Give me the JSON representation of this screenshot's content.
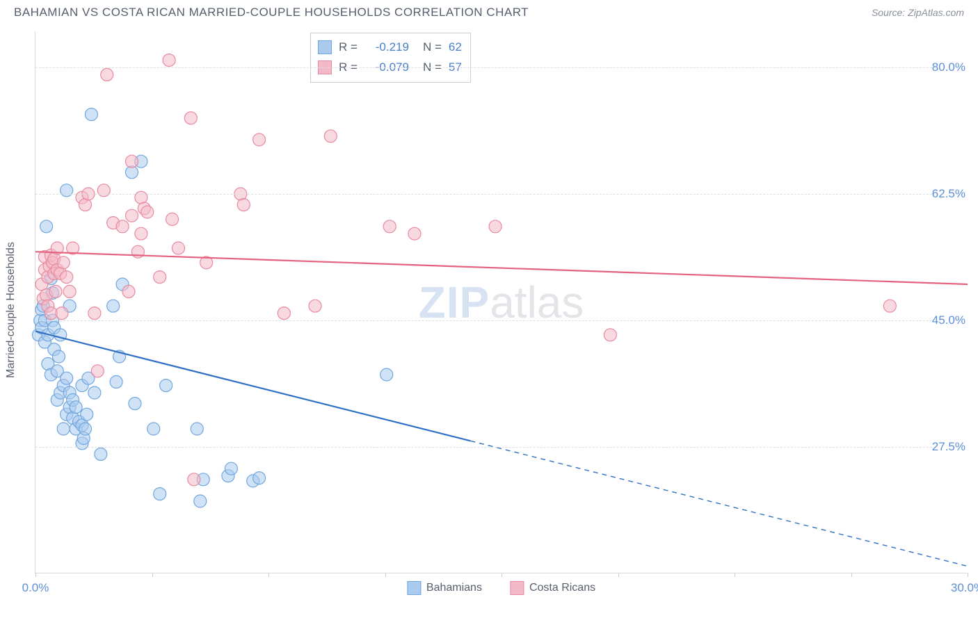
{
  "header": {
    "title": "BAHAMIAN VS COSTA RICAN MARRIED-COUPLE HOUSEHOLDS CORRELATION CHART",
    "source": "Source: ZipAtlas.com"
  },
  "chart": {
    "type": "scatter",
    "ylabel": "Married-couple Households",
    "background_color": "#ffffff",
    "grid_color": "#dcdfe2",
    "axis_color": "#d6d8da",
    "label_color": "#555e6c",
    "tick_label_color": "#5b8fd6",
    "tick_fontsize": 17,
    "label_fontsize": 16,
    "xlim": [
      0,
      30
    ],
    "ylim": [
      10,
      85
    ],
    "yticks": [
      27.5,
      45.0,
      62.5,
      80.0
    ],
    "ytick_labels": [
      "27.5%",
      "45.0%",
      "62.5%",
      "80.0%"
    ],
    "xticks": [
      0,
      3.75,
      7.5,
      11.25,
      15,
      18.75,
      22.5,
      26.25,
      30
    ],
    "xtick_labels": {
      "0": "0.0%",
      "30": "30.0%"
    },
    "marker_radius": 9,
    "marker_stroke_width": 1.2,
    "line_width": 2.2,
    "watermark": {
      "zip": "ZIP",
      "atlas": "atlas"
    },
    "series": [
      {
        "name": "Bahamians",
        "fill": "#a9cbee",
        "fill_opacity": 0.55,
        "stroke": "#6fa6de",
        "line_color": "#2f6fc4",
        "R": "-0.219",
        "N": "62",
        "trend": {
          "x1": 0,
          "y1": 43.5,
          "x2": 30,
          "y2": 11.0,
          "solid_until_x": 14
        },
        "points": [
          [
            0.1,
            43
          ],
          [
            0.15,
            45
          ],
          [
            0.2,
            44
          ],
          [
            0.2,
            46.5
          ],
          [
            0.25,
            47
          ],
          [
            0.3,
            42
          ],
          [
            0.3,
            45
          ],
          [
            0.35,
            58
          ],
          [
            0.4,
            39
          ],
          [
            0.4,
            43
          ],
          [
            0.5,
            50.8
          ],
          [
            0.5,
            37.5
          ],
          [
            0.55,
            45
          ],
          [
            0.55,
            48.8
          ],
          [
            0.6,
            41
          ],
          [
            0.6,
            44
          ],
          [
            0.7,
            34
          ],
          [
            0.7,
            38
          ],
          [
            0.75,
            40
          ],
          [
            0.8,
            35
          ],
          [
            0.8,
            43
          ],
          [
            0.9,
            30
          ],
          [
            0.9,
            36
          ],
          [
            1.0,
            32
          ],
          [
            1.0,
            37
          ],
          [
            1.0,
            63
          ],
          [
            1.1,
            33
          ],
          [
            1.1,
            35
          ],
          [
            1.1,
            47
          ],
          [
            1.2,
            31.5
          ],
          [
            1.2,
            34
          ],
          [
            1.3,
            30
          ],
          [
            1.3,
            33
          ],
          [
            1.4,
            31
          ],
          [
            1.5,
            28
          ],
          [
            1.5,
            30.5
          ],
          [
            1.5,
            36
          ],
          [
            1.55,
            28.7
          ],
          [
            1.6,
            30
          ],
          [
            1.65,
            32
          ],
          [
            1.7,
            37
          ],
          [
            1.8,
            73.5
          ],
          [
            1.9,
            35
          ],
          [
            2.1,
            26.5
          ],
          [
            2.5,
            47
          ],
          [
            2.6,
            36.5
          ],
          [
            2.7,
            40
          ],
          [
            2.8,
            50
          ],
          [
            3.1,
            65.5
          ],
          [
            3.2,
            33.5
          ],
          [
            3.4,
            67
          ],
          [
            3.8,
            30
          ],
          [
            4.0,
            21
          ],
          [
            4.2,
            36
          ],
          [
            5.2,
            30
          ],
          [
            5.3,
            20
          ],
          [
            5.4,
            23
          ],
          [
            6.2,
            23.5
          ],
          [
            6.3,
            24.5
          ],
          [
            7.0,
            22.8
          ],
          [
            7.2,
            23.2
          ],
          [
            11.3,
            37.5
          ]
        ]
      },
      {
        "name": "Costa Ricans",
        "fill": "#f4b9c9",
        "fill_opacity": 0.55,
        "stroke": "#e8899f",
        "line_color": "#e4627f",
        "R": "-0.079",
        "N": "57",
        "trend": {
          "x1": 0,
          "y1": 54.5,
          "x2": 30,
          "y2": 50.0,
          "solid_until_x": 30
        },
        "points": [
          [
            0.2,
            50
          ],
          [
            0.25,
            48
          ],
          [
            0.3,
            52
          ],
          [
            0.3,
            53.8
          ],
          [
            0.35,
            48.5
          ],
          [
            0.4,
            47
          ],
          [
            0.4,
            51
          ],
          [
            0.45,
            52.5
          ],
          [
            0.5,
            46
          ],
          [
            0.5,
            54
          ],
          [
            0.55,
            53
          ],
          [
            0.6,
            51.5
          ],
          [
            0.6,
            53.5
          ],
          [
            0.65,
            49
          ],
          [
            0.7,
            52
          ],
          [
            0.7,
            55
          ],
          [
            0.8,
            51.5
          ],
          [
            0.85,
            46
          ],
          [
            0.9,
            53
          ],
          [
            1.0,
            51
          ],
          [
            1.1,
            49
          ],
          [
            1.2,
            55
          ],
          [
            1.5,
            62
          ],
          [
            1.6,
            61
          ],
          [
            1.7,
            62.5
          ],
          [
            1.9,
            46
          ],
          [
            2.0,
            38
          ],
          [
            2.2,
            63
          ],
          [
            2.3,
            79
          ],
          [
            2.5,
            58.5
          ],
          [
            2.8,
            58
          ],
          [
            3.0,
            49
          ],
          [
            3.1,
            59.5
          ],
          [
            3.1,
            67
          ],
          [
            3.3,
            54.5
          ],
          [
            3.4,
            57
          ],
          [
            3.4,
            62
          ],
          [
            3.5,
            60.5
          ],
          [
            3.6,
            60
          ],
          [
            4.0,
            51
          ],
          [
            4.3,
            81
          ],
          [
            4.4,
            59
          ],
          [
            4.6,
            55
          ],
          [
            5.0,
            73
          ],
          [
            5.1,
            23
          ],
          [
            5.5,
            53
          ],
          [
            6.6,
            62.5
          ],
          [
            6.7,
            61
          ],
          [
            7.2,
            70
          ],
          [
            8.0,
            46
          ],
          [
            9.0,
            47
          ],
          [
            9.5,
            70.5
          ],
          [
            11.4,
            58
          ],
          [
            12.2,
            57
          ],
          [
            14.8,
            58
          ],
          [
            18.5,
            43
          ],
          [
            27.5,
            47
          ]
        ]
      }
    ],
    "bottom_legend": [
      {
        "label": "Bahamians",
        "fill": "#a9cbee",
        "stroke": "#6fa6de"
      },
      {
        "label": "Costa Ricans",
        "fill": "#f4b9c9",
        "stroke": "#e8899f"
      }
    ]
  }
}
